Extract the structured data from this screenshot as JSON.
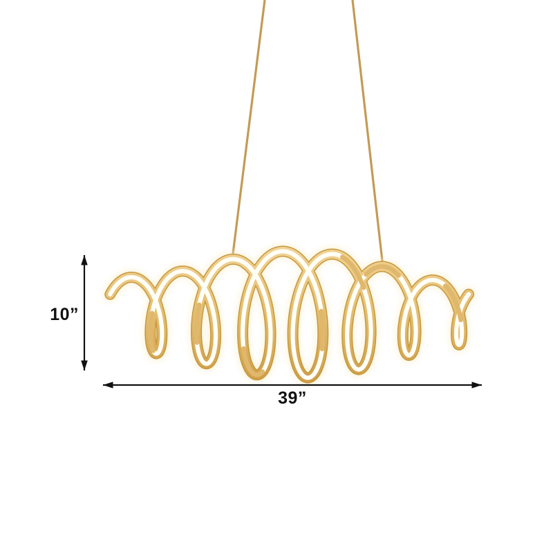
{
  "diagram": {
    "name": "spiral-led-pendant-light-dimension-diagram",
    "background_color": "#ffffff",
    "fixture": {
      "kind": "spiral-coil-led-chandelier",
      "colors": {
        "glow": "#F8ECC4",
        "gold_edge": "#C8983C",
        "gold_light": "#F0D294",
        "gold_mid": "#E2BB6C",
        "gold_dark": "#CF9F4B",
        "gold_twist": "#DDB261",
        "led_white": "#FFFEF7",
        "cord": "#C49A55"
      }
    },
    "dimensions": {
      "height_label": "10”",
      "width_label": "39”",
      "line_color": "#111111"
    }
  }
}
